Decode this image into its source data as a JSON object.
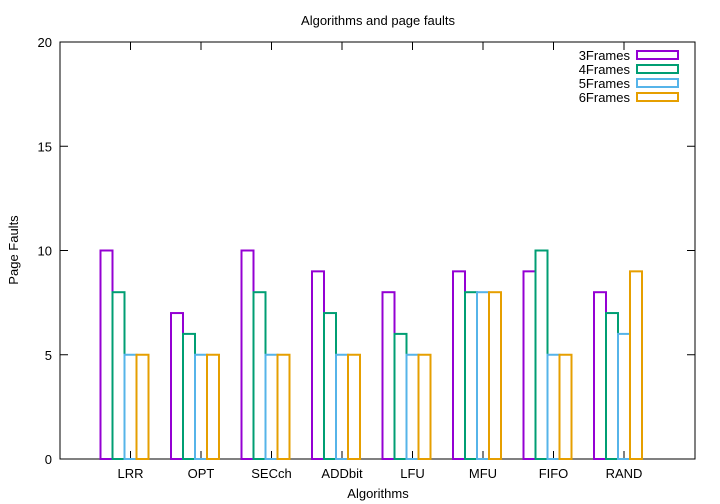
{
  "chart_data": {
    "type": "bar",
    "title": "Algorithms and page faults",
    "xlabel": "Algorithms",
    "ylabel": "Page Faults",
    "ylim": [
      0,
      20
    ],
    "yticks": [
      0,
      5,
      10,
      15,
      20
    ],
    "grid": false,
    "legend_position": "top-right",
    "categories": [
      "LRR",
      "OPT",
      "SECch",
      "ADDbit",
      "LFU",
      "MFU",
      "FIFO",
      "RAND"
    ],
    "series": [
      {
        "name": "3Frames",
        "color": "#9400d3",
        "values": [
          10,
          7,
          10,
          9,
          8,
          9,
          9,
          8
        ]
      },
      {
        "name": "4Frames",
        "color": "#009e73",
        "values": [
          8,
          6,
          8,
          7,
          6,
          8,
          10,
          7
        ]
      },
      {
        "name": "5Frames",
        "color": "#56b4e9",
        "values": [
          5,
          5,
          5,
          5,
          5,
          8,
          5,
          6
        ]
      },
      {
        "name": "6Frames",
        "color": "#e69f00",
        "values": [
          5,
          5,
          5,
          5,
          5,
          8,
          5,
          9
        ]
      }
    ]
  }
}
